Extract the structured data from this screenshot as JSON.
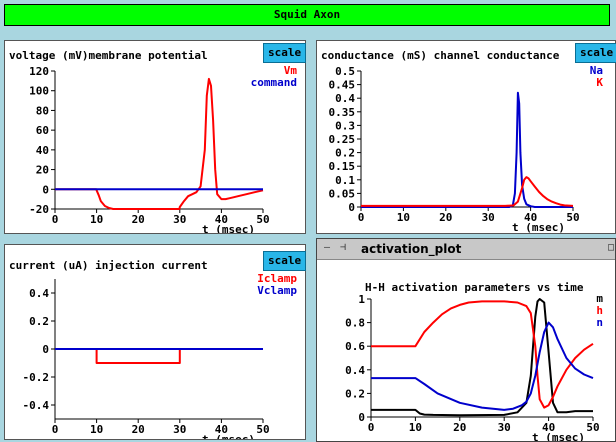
{
  "header": {
    "title": "Squid Axon"
  },
  "panels": {
    "voltage": {
      "title": "voltage (mV)membrane potential",
      "scale_label": "scale",
      "legend": [
        {
          "label": "Vm",
          "color": "#ff0000"
        },
        {
          "label": "command",
          "color": "#0000cc"
        }
      ]
    },
    "conductance": {
      "title": "conductance (mS) channel conductance",
      "scale_label": "scale",
      "legend": [
        {
          "label": "Na",
          "color": "#0000cc"
        },
        {
          "label": "K",
          "color": "#ff0000"
        }
      ]
    },
    "current": {
      "title": "current (uA) injection current",
      "scale_label": "scale",
      "legend": [
        {
          "label": "Iclamp",
          "color": "#ff0000"
        },
        {
          "label": "Vclamp",
          "color": "#0000cc"
        }
      ]
    },
    "activation": {
      "window_title": "activation_plot",
      "title": "H-H activation parameters vs time",
      "legend": [
        {
          "label": "m",
          "color": "#000000"
        },
        {
          "label": "h",
          "color": "#ff0000"
        },
        {
          "label": "n",
          "color": "#0000cc"
        }
      ]
    }
  },
  "chart_data": [
    {
      "type": "line",
      "id": "voltage",
      "xlabel": "t (msec)",
      "xlim": [
        0,
        50
      ],
      "ylim": [
        -20,
        120
      ],
      "xticks": [
        0,
        10,
        20,
        30,
        40,
        50
      ],
      "yticks": [
        -20,
        0,
        20,
        40,
        60,
        80,
        100,
        120
      ],
      "ytick_labels": [
        "-20",
        "0",
        "20",
        "40",
        "60",
        "80",
        "100",
        "120"
      ],
      "series": [
        {
          "name": "Vm",
          "color": "#ff0000",
          "x": [
            0,
            9.9,
            10,
            10.5,
            11,
            12,
            13,
            14,
            20,
            29.9,
            30,
            31,
            32,
            33,
            34,
            35,
            36,
            36.5,
            37,
            37.5,
            38,
            38.5,
            39,
            40,
            41,
            42,
            43,
            44,
            46,
            48,
            50
          ],
          "y": [
            0,
            0,
            -1,
            -6,
            -12,
            -17,
            -19,
            -20,
            -20,
            -20,
            -18,
            -12,
            -7,
            -5,
            -3,
            3,
            40,
            95,
            112,
            105,
            70,
            20,
            -5,
            -10,
            -10,
            -9,
            -8,
            -7,
            -5,
            -3,
            -1
          ]
        },
        {
          "name": "command",
          "color": "#0000cc",
          "x": [
            0,
            50
          ],
          "y": [
            0,
            0
          ]
        }
      ]
    },
    {
      "type": "line",
      "id": "conductance",
      "xlabel": "t (msec)",
      "xlim": [
        0,
        50
      ],
      "ylim": [
        0,
        0.5
      ],
      "xticks": [
        0,
        10,
        20,
        30,
        40,
        50
      ],
      "yticks": [
        0,
        0.05,
        0.1,
        0.15,
        0.2,
        0.25,
        0.3,
        0.35,
        0.4,
        0.45,
        0.5
      ],
      "ytick_labels": [
        "0",
        "0.05",
        "0.1",
        "0.15",
        "0.2",
        "0.25",
        "0.3",
        "0.35",
        "0.4",
        "0.45",
        "0.5"
      ],
      "series": [
        {
          "name": "Na",
          "color": "#0000cc",
          "x": [
            0,
            35,
            35.8,
            36.3,
            36.7,
            37,
            37.3,
            37.6,
            38,
            38.5,
            39,
            40,
            41,
            50
          ],
          "y": [
            0,
            0,
            0.005,
            0.05,
            0.2,
            0.42,
            0.38,
            0.2,
            0.08,
            0.03,
            0.01,
            0.003,
            0,
            0
          ]
        },
        {
          "name": "K",
          "color": "#ff0000",
          "x": [
            0,
            34,
            36,
            37,
            38,
            38.5,
            39,
            39.5,
            40,
            41,
            42,
            43,
            44,
            45,
            46,
            47,
            48,
            50
          ],
          "y": [
            0.004,
            0.004,
            0.006,
            0.02,
            0.07,
            0.1,
            0.11,
            0.105,
            0.095,
            0.075,
            0.055,
            0.04,
            0.028,
            0.02,
            0.014,
            0.009,
            0.006,
            0.004
          ]
        }
      ]
    },
    {
      "type": "line",
      "id": "current",
      "xlabel": "t (msec)",
      "xlim": [
        0,
        50
      ],
      "ylim": [
        -0.5,
        0.5
      ],
      "xticks": [
        0,
        10,
        20,
        30,
        40,
        50
      ],
      "yticks": [
        -0.4,
        -0.2,
        0,
        0.2,
        0.4
      ],
      "ytick_labels": [
        "-0.4",
        "-0.2",
        "0",
        "0.2",
        "0.4"
      ],
      "series": [
        {
          "name": "Iclamp",
          "color": "#ff0000",
          "x": [
            0,
            10,
            10,
            30,
            30,
            50
          ],
          "y": [
            0,
            0,
            -0.1,
            -0.1,
            0,
            0
          ]
        },
        {
          "name": "Vclamp",
          "color": "#0000cc",
          "x": [
            0,
            50
          ],
          "y": [
            0,
            0
          ]
        }
      ]
    },
    {
      "type": "line",
      "id": "activation",
      "xlabel": "t (msec)",
      "xlim": [
        0,
        50
      ],
      "ylim": [
        0,
        1
      ],
      "xticks": [
        0,
        10,
        20,
        30,
        40,
        50
      ],
      "yticks": [
        0,
        0.2,
        0.4,
        0.6,
        0.8,
        1
      ],
      "ytick_labels": [
        "0",
        "0.2",
        "0.4",
        "0.6",
        "0.8",
        "1"
      ],
      "series": [
        {
          "name": "m",
          "color": "#000000",
          "x": [
            0,
            10,
            11,
            12,
            14,
            20,
            30,
            33,
            35,
            36,
            37,
            37.5,
            38,
            39,
            40,
            41,
            42,
            44,
            46,
            50
          ],
          "y": [
            0.06,
            0.06,
            0.03,
            0.02,
            0.018,
            0.015,
            0.018,
            0.04,
            0.12,
            0.35,
            0.85,
            0.98,
            1.0,
            0.97,
            0.55,
            0.12,
            0.04,
            0.04,
            0.05,
            0.05
          ]
        },
        {
          "name": "h",
          "color": "#ff0000",
          "x": [
            0,
            10,
            12,
            14,
            16,
            18,
            20,
            22,
            25,
            30,
            33,
            35,
            36,
            37,
            37.5,
            38,
            39,
            40,
            41,
            42,
            44,
            46,
            48,
            50
          ],
          "y": [
            0.6,
            0.6,
            0.72,
            0.8,
            0.87,
            0.92,
            0.95,
            0.97,
            0.98,
            0.98,
            0.97,
            0.94,
            0.88,
            0.6,
            0.35,
            0.15,
            0.08,
            0.1,
            0.17,
            0.26,
            0.4,
            0.5,
            0.57,
            0.62
          ]
        },
        {
          "name": "n",
          "color": "#0000cc",
          "x": [
            0,
            10,
            12,
            15,
            20,
            25,
            30,
            32,
            34,
            35,
            36,
            37,
            38,
            39,
            40,
            41,
            42,
            44,
            46,
            48,
            50
          ],
          "y": [
            0.33,
            0.33,
            0.28,
            0.2,
            0.12,
            0.08,
            0.06,
            0.07,
            0.1,
            0.13,
            0.2,
            0.35,
            0.55,
            0.72,
            0.8,
            0.76,
            0.66,
            0.5,
            0.41,
            0.36,
            0.33
          ]
        }
      ]
    }
  ]
}
